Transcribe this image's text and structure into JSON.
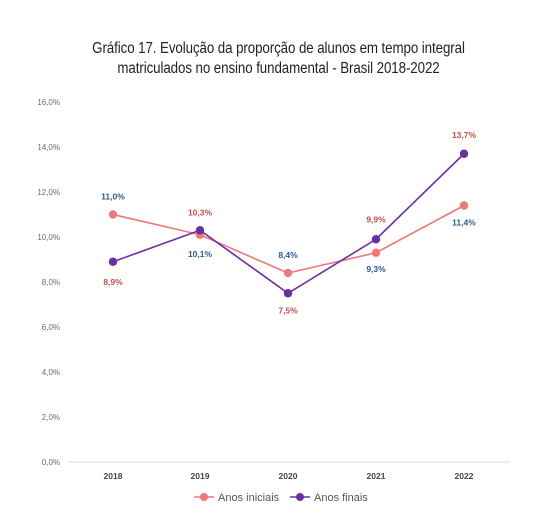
{
  "colors": {
    "anos_iniciais": "#F0787A",
    "anos_finais": "#6B2FA0",
    "label_red": "#C0504D",
    "label_blue": "#2E5A8C",
    "grid": "#d9d9d9"
  },
  "chart_data": {
    "type": "line",
    "title": "Gráfico 17. Evolução da proporção de alunos em tempo integral",
    "subtitle": "matriculados no ensino fundamental - Brasil 2018-2022",
    "xlabel": "",
    "ylabel": "",
    "categories": [
      "2018",
      "2019",
      "2020",
      "2021",
      "2022"
    ],
    "ylim": [
      0,
      16
    ],
    "yticks": [
      "0,0%",
      "2,0%",
      "4,0%",
      "6,0%",
      "8,0%",
      "10,0%",
      "12,0%",
      "14,0%",
      "16,0%"
    ],
    "grid": false,
    "legend_position": "bottom",
    "series": [
      {
        "name": "Anos iniciais",
        "values": [
          11.0,
          10.1,
          8.4,
          9.3,
          11.4
        ],
        "labels": [
          "11,0%",
          "10,1%",
          "8,4%",
          "9,3%",
          "11,4%"
        ]
      },
      {
        "name": "Anos finais",
        "values": [
          8.9,
          10.3,
          7.5,
          9.9,
          13.7
        ],
        "labels": [
          "8,9%",
          "10,3%",
          "7,5%",
          "9,9%",
          "13,7%"
        ]
      }
    ]
  }
}
